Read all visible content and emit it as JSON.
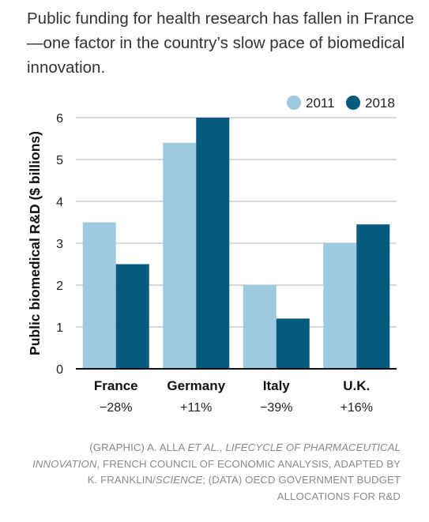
{
  "title": "Public funding for health research has fallen in France—one factor in the country’s slow pace of biomedical innovation.",
  "credit": {
    "p1": "(GRAPHIC) A. ALLA ",
    "p2": "ET AL.",
    "p3": ", ",
    "p4": "LIFECYCLE OF PHARMACEUTICAL INNOVATION",
    "p5": ", FRENCH COUNCIL OF ECONOMIC ANALYSIS, ADAPTED BY K. FRANKLIN/",
    "p6": "SCIENCE",
    "p7": "; (DATA) OECD GOVERNMENT BUDGET ALLOCATIONS FOR R&D"
  },
  "chart_data": {
    "type": "bar",
    "categories": [
      "France",
      "Germany",
      "Italy",
      "U.K."
    ],
    "changes": [
      "−28%",
      "+11%",
      "−39%",
      "+16%"
    ],
    "series": [
      {
        "name": "2011",
        "values": [
          3.5,
          5.4,
          2.0,
          3.0
        ],
        "color": "#9ecae1"
      },
      {
        "name": "2018",
        "values": [
          2.5,
          6.0,
          1.2,
          3.45
        ],
        "color": "#065a7e"
      }
    ],
    "ylabel": "Public biomedical R&D ($ billions)",
    "ylim": [
      0,
      6
    ],
    "yticks": [
      0,
      1,
      2,
      3,
      4,
      5,
      6
    ],
    "grid": true,
    "legend_position": "top-right"
  }
}
